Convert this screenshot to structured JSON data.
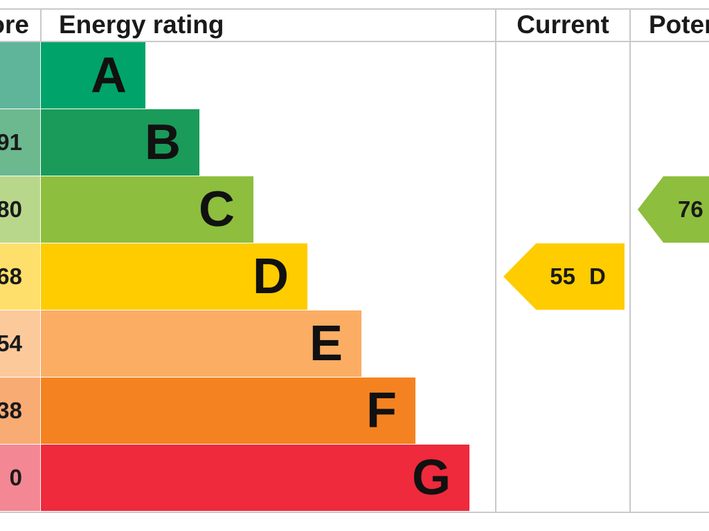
{
  "header": {
    "score_label": "ore",
    "rating_label": "Energy rating",
    "current_label": "Current",
    "potential_label": "Poter"
  },
  "chart_data": {
    "type": "bar",
    "categories": [
      "A",
      "B",
      "C",
      "D",
      "E",
      "F",
      "G"
    ],
    "score_labels": [
      "",
      "91",
      "80",
      "68",
      "54",
      "38",
      "0"
    ],
    "colors": [
      "#00a46a",
      "#1a9b59",
      "#8dbe3e",
      "#ffcc00",
      "#fbad64",
      "#f58220",
      "#ee2a3c"
    ],
    "score_colors": [
      "#5fb59a",
      "#6cb88f",
      "#b9d78b",
      "#ffdf6b",
      "#fcc99b",
      "#f9ab74",
      "#f38793"
    ],
    "current": {
      "value": 55,
      "rating": "D",
      "color": "#ffcc00"
    },
    "potential": {
      "value": 76,
      "rating": "C",
      "color": "#8dbe3e",
      "visible_text": "76"
    }
  }
}
